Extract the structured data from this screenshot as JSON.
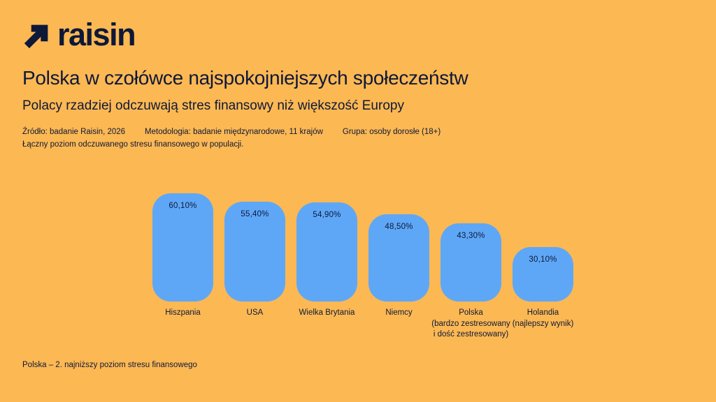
{
  "colors": {
    "background": "#FCB853",
    "bar": "#5EA7F7",
    "text": "#0E1838"
  },
  "brand": {
    "logo_text": "raisin",
    "logo_icon": "arrow-up-right-icon"
  },
  "header": {
    "title": "Polska w czołówce najspokojniejszych społeczeństw",
    "subtitle": "Polacy rzadziej odczuwają stres finansowy niż większość Europy",
    "meta_items": [
      "Źródło: badanie Raisin, 2026",
      "Metodologia: badanie międzynarodowe, 11 krajów",
      "Grupa: osoby dorosłe (18+)"
    ],
    "meta_line2": "Łączny poziom odczuwanego stresu finansowego w populacji."
  },
  "chart_data": {
    "type": "bar",
    "title": "",
    "xlabel": "",
    "ylabel": "",
    "categories": [
      "Hiszpania",
      "USA",
      "Wielka Brytania",
      "Niemcy",
      "Polska\n(bardzo zestresowany\ni dość zestresowany)",
      "Holandia\n(najlepszy wynik)"
    ],
    "values": [
      60.1,
      55.4,
      54.9,
      48.5,
      43.3,
      30.1
    ],
    "value_labels": [
      "60,10%",
      "55,40%",
      "54,90%",
      "48,50%",
      "43,30%",
      "30,10%"
    ],
    "ylim": [
      0,
      62
    ],
    "grid": false,
    "legend": false,
    "axes_visible": false,
    "bar_color": "#5EA7F7",
    "label_color": "#0E1838"
  },
  "footer": {
    "note": "Polska – 2. najniższy poziom stresu finansowego"
  }
}
